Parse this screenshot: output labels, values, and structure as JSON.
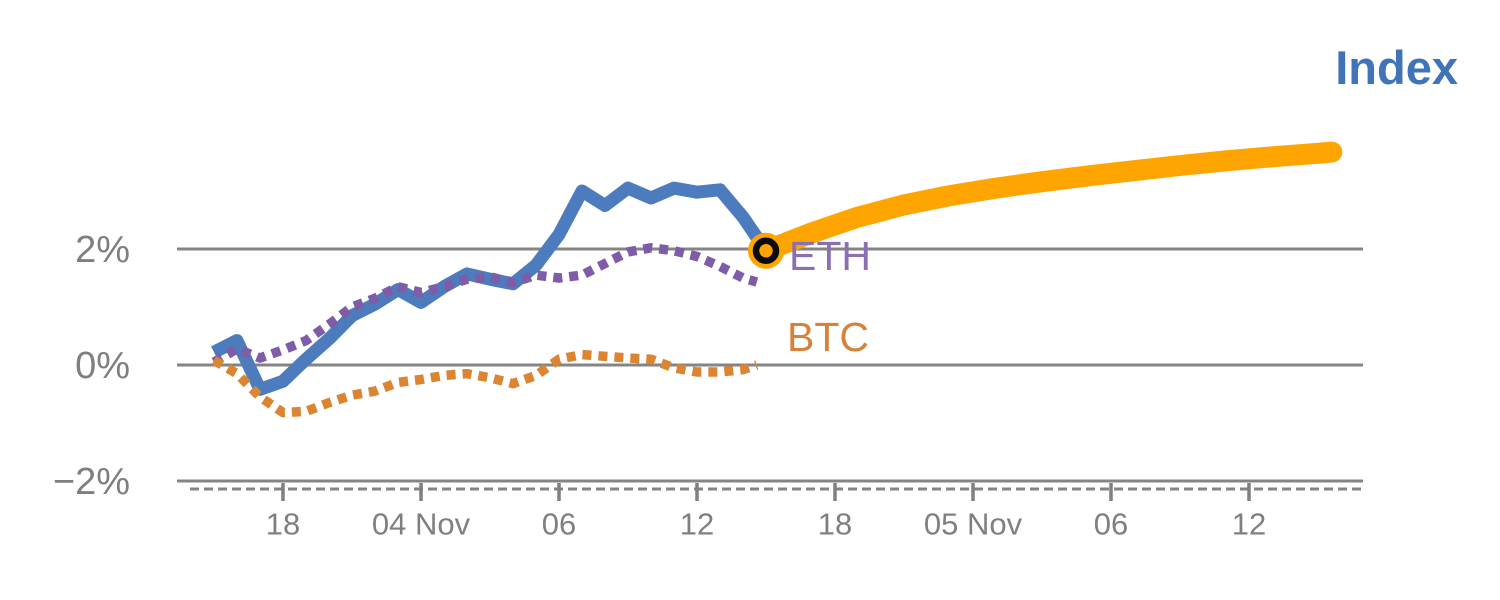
{
  "title": {
    "text": "Index"
  },
  "series_labels": {
    "eth": "ETH",
    "btc": "BTC"
  },
  "colors": {
    "title_blue": "#4173B9",
    "index_history_blue": "#4D7CBE",
    "index_projection_orange": "#FFA502",
    "eth_purple_dots": "#7E5CA7",
    "eth_label_purple": "#8A6FB5",
    "btc_orange_dots": "#DB8432",
    "btc_label_orange": "#D6823A",
    "gridline_gray": "#848484",
    "axis_text_gray": "#7F7F7F",
    "marker_ring_black": "#0B0B0B"
  },
  "chart_data": {
    "type": "line",
    "title": "Index",
    "time_origin_note": "hours measured from 03 Nov 15:00",
    "x_axis": {
      "tick_labels": [
        "18",
        "04 Nov",
        "06",
        "12",
        "18",
        "05 Nov",
        "06",
        "12"
      ],
      "tick_hours": [
        3,
        9,
        15,
        21,
        27,
        33,
        39,
        45
      ],
      "grid": false
    },
    "y_axis": {
      "tick_labels": [
        "2%",
        "0%",
        "−2%"
      ],
      "tick_values": [
        2,
        0,
        -2
      ],
      "unit": "%",
      "range": [
        -2.6,
        4.2
      ],
      "grid": true
    },
    "legend_position": "inline-right-of-last-point",
    "series": [
      {
        "name": "Index (history)",
        "type": "line",
        "style": "solid",
        "color": "#4D7CBE",
        "hours": [
          0,
          1,
          2,
          3,
          4,
          5,
          6,
          7,
          8,
          9,
          10,
          11,
          12,
          13,
          14,
          15,
          16,
          17,
          18,
          19,
          20,
          21,
          22,
          23,
          24
        ],
        "values": [
          0.22,
          0.42,
          -0.42,
          -0.28,
          0.1,
          0.45,
          0.85,
          1.05,
          1.3,
          1.08,
          1.35,
          1.57,
          1.48,
          1.4,
          1.72,
          2.25,
          3.0,
          2.75,
          3.05,
          2.88,
          3.05,
          2.98,
          3.02,
          2.55,
          1.97
        ]
      },
      {
        "name": "Index (projection)",
        "type": "line",
        "style": "solid-thick",
        "color": "#FFA502",
        "hours": [
          24,
          26,
          28,
          30,
          32,
          34,
          36,
          38,
          40,
          42,
          44,
          46,
          48,
          48.6
        ],
        "values": [
          1.97,
          2.28,
          2.55,
          2.76,
          2.92,
          3.05,
          3.16,
          3.26,
          3.35,
          3.44,
          3.52,
          3.59,
          3.65,
          3.67
        ]
      },
      {
        "name": "ETH",
        "type": "line",
        "style": "dotted",
        "color": "#7E5CA7",
        "hours": [
          0,
          1,
          2,
          3,
          4,
          5,
          6,
          7,
          8,
          9,
          10,
          11,
          12,
          13,
          14,
          15,
          16,
          17,
          18,
          19,
          20,
          21,
          22,
          23,
          23.6
        ],
        "values": [
          0.05,
          0.28,
          0.12,
          0.26,
          0.42,
          0.7,
          1.0,
          1.15,
          1.35,
          1.25,
          1.35,
          1.48,
          1.52,
          1.42,
          1.55,
          1.5,
          1.55,
          1.75,
          1.95,
          2.02,
          1.97,
          1.87,
          1.7,
          1.5,
          1.43
        ]
      },
      {
        "name": "BTC",
        "type": "line",
        "style": "dotted",
        "color": "#DB8432",
        "hours": [
          0,
          1,
          2,
          3,
          4,
          5,
          6,
          7,
          8,
          9,
          10,
          11,
          12,
          13,
          14,
          15,
          16,
          17,
          18,
          19,
          20,
          21,
          22,
          23,
          23.6
        ],
        "values": [
          0.08,
          -0.15,
          -0.55,
          -0.82,
          -0.8,
          -0.65,
          -0.52,
          -0.45,
          -0.3,
          -0.25,
          -0.18,
          -0.15,
          -0.22,
          -0.32,
          -0.18,
          0.1,
          0.18,
          0.15,
          0.12,
          0.1,
          -0.05,
          -0.12,
          -0.12,
          -0.08,
          0.0
        ]
      }
    ],
    "marker": {
      "name": "current-point",
      "hour": 24,
      "value": 1.97,
      "fill": "#FFA502",
      "ring": "#0B0B0B"
    }
  }
}
